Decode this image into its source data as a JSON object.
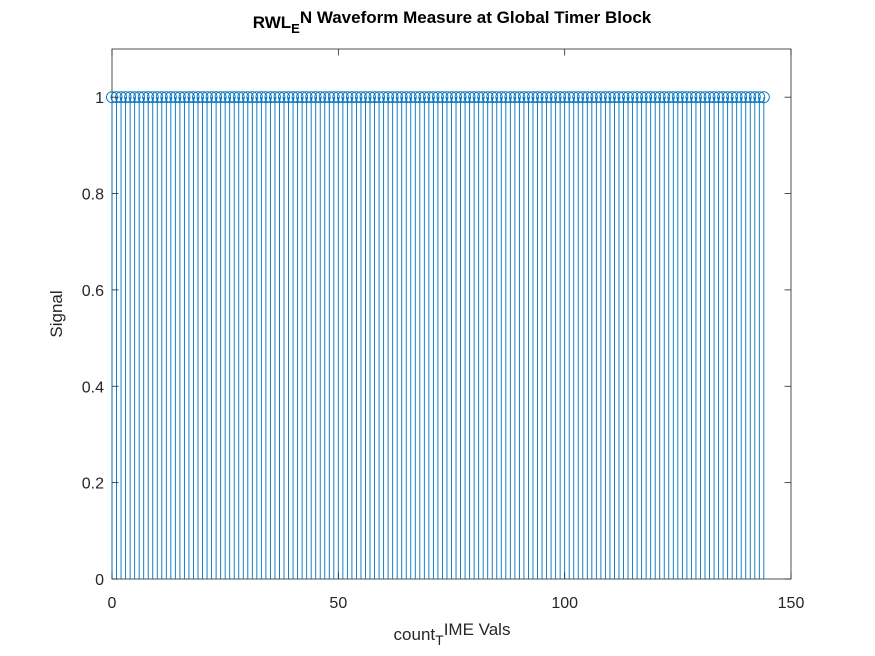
{
  "chart_data": {
    "type": "stem",
    "title_parts": {
      "main": "RWL",
      "sub": "E",
      "rest": "N Waveform Measure at Global Timer Block"
    },
    "xlabel_parts": {
      "main": "count",
      "sub": "T",
      "rest": "IME Vals"
    },
    "ylabel": "Signal",
    "xlim": [
      0,
      150
    ],
    "ylim": [
      0,
      1.1
    ],
    "xticks": [
      0,
      50,
      100,
      150
    ],
    "xtick_labels": [
      "0",
      "50",
      "100",
      "150"
    ],
    "yticks": [
      0,
      0.2,
      0.4,
      0.6,
      0.8,
      1
    ],
    "ytick_labels": [
      "0",
      "0.2",
      "0.4",
      "0.6",
      "0.8",
      "1"
    ],
    "grid": false,
    "series": [
      {
        "x_start": 0,
        "x_end": 144,
        "x_step": 1,
        "value": 1,
        "color": "#0072BD",
        "marker": "circle-open"
      }
    ]
  }
}
